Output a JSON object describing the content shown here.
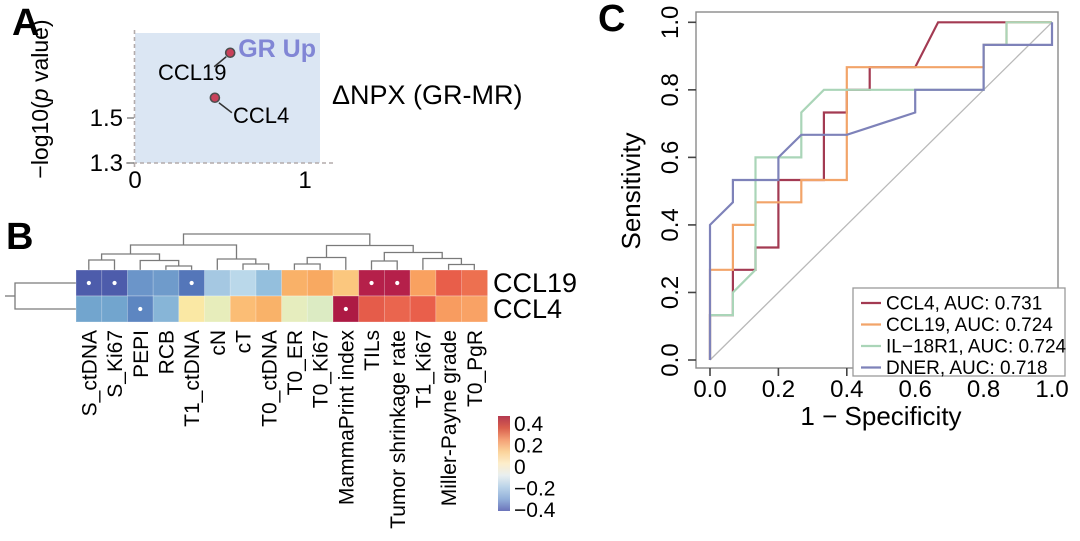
{
  "panel_a": {
    "label": "A",
    "ylabel_pre": "−log10(",
    "ylabel_italic": "p",
    "ylabel_post": " value)",
    "xlabel": "ΔNPX (GR-MR)",
    "region_label": "GR Up",
    "region_label_color": "#8186d5",
    "region_fill": "#dbe6f3",
    "dash_color": "#b3abab",
    "point_fill": "#c9415a",
    "point_stroke": "#4d4d4d",
    "yticks": [
      {
        "v": 1.5,
        "label": "1.5"
      },
      {
        "v": 1.3,
        "label": "1.3"
      }
    ],
    "xticks": [
      {
        "v": 0,
        "label": "0"
      },
      {
        "v": 1,
        "label": "1"
      }
    ]
  },
  "panel_b": {
    "label": "B",
    "dendrogram_color": "#7a7a7a",
    "colorbar": {
      "ticks": [
        "0.4",
        "0.2",
        "0",
        "−0.2",
        "−0.4"
      ],
      "stops": [
        "#b43a50",
        "#d95f4d",
        "#f4a076",
        "#fbd39b",
        "#fdeecb",
        "#e9eff0",
        "#bad3e9",
        "#93b0da",
        "#6b74ba"
      ]
    }
  },
  "panel_c": {
    "label": "C",
    "xlabel": "1 − Specificity",
    "ylabel": "Sensitivity",
    "xticks": [
      "0.0",
      "0.2",
      "0.4",
      "0.6",
      "0.8",
      "1.0"
    ],
    "yticks": [
      "0.0",
      "0.2",
      "0.4",
      "0.6",
      "0.8",
      "1.0"
    ],
    "box_color": "#8a8a8a",
    "diagonal_color": "#b9b9b9",
    "legend_border": "#9a9a9a"
  },
  "chart_data": [
    {
      "type": "scatter",
      "panel": "A",
      "xlabel": "ΔNPX (GR-MR)",
      "ylabel": "−log10(p value)",
      "xticks": [
        0,
        1
      ],
      "yticks": [
        1.5,
        1.3
      ],
      "shaded_region": "x > 0 and y > 1.3 (GR Up)",
      "annotations": [
        "GR Up"
      ],
      "points": [
        {
          "label": "CCL19",
          "x": 0.56,
          "y": 1.79
        },
        {
          "label": "CCL4",
          "x": 0.47,
          "y": 1.59
        }
      ]
    },
    {
      "type": "heatmap",
      "panel": "B",
      "rows": [
        "CCL19",
        "CCL4"
      ],
      "columns": [
        "S_ctDNA",
        "S_Ki67",
        "PEPI",
        "RCB",
        "T1_ctDNA",
        "cN",
        "cT",
        "T0_ctDNA",
        "T0_ER",
        "T0_Ki67",
        "MammaPrint index",
        "TILs",
        "Tumor shrinkage rate",
        "T1_Ki67",
        "Miller-Payne grade",
        "T0_PgR"
      ],
      "values": [
        [
          -0.42,
          -0.42,
          -0.27,
          -0.26,
          -0.37,
          -0.16,
          -0.12,
          -0.19,
          0.19,
          0.21,
          0.13,
          0.43,
          0.43,
          0.22,
          0.32,
          0.3
        ],
        [
          -0.22,
          -0.22,
          -0.35,
          -0.16,
          0.06,
          0.01,
          0.14,
          0.17,
          0.02,
          -0.02,
          0.44,
          0.32,
          0.29,
          0.3,
          0.22,
          0.21
        ]
      ],
      "cell_colors": [
        [
          "#4d5cab",
          "#4d5cab",
          "#6b95c9",
          "#6f9bcb",
          "#5476b9",
          "#a5c8e2",
          "#bad8ea",
          "#94bfdd",
          "#f9b168",
          "#f8a961",
          "#fbc77e",
          "#b5204a",
          "#b5204a",
          "#f9a160",
          "#e85e4a",
          "#ed7050"
        ],
        [
          "#72a5ce",
          "#72a5ce",
          "#5d86c1",
          "#87b5d7",
          "#fae8a4",
          "#e7edbb",
          "#fbbd75",
          "#f9b269",
          "#e6edbe",
          "#dcebc3",
          "#ad1a44",
          "#e55c4a",
          "#ea654e",
          "#e95f4b",
          "#f89c60",
          "#f9a265"
        ]
      ],
      "significance_dots": [
        [
          1,
          1,
          0,
          0,
          1,
          0,
          0,
          0,
          0,
          0,
          0,
          1,
          1,
          0,
          0,
          0
        ],
        [
          0,
          0,
          1,
          0,
          0,
          0,
          0,
          0,
          0,
          0,
          1,
          0,
          0,
          0,
          0,
          0
        ]
      ],
      "colorbar_range": [
        0.45,
        -0.45
      ],
      "colorbar_ticks": [
        0.4,
        0.2,
        0,
        -0.2,
        -0.4
      ]
    },
    {
      "type": "line",
      "panel": "C",
      "subtype": "ROC",
      "xlabel": "1 − Specificity",
      "ylabel": "Sensitivity",
      "xlim": [
        0,
        1
      ],
      "ylim": [
        0,
        1
      ],
      "legend_position": "bottom-right",
      "series": [
        {
          "name": "CCL4",
          "auc": 0.731,
          "legend": "CCL4, AUC: 0.731",
          "color": "#a33a52",
          "points": [
            [
              0,
              0
            ],
            [
              0,
              0.133
            ],
            [
              0.067,
              0.133
            ],
            [
              0.067,
              0.267
            ],
            [
              0.133,
              0.267
            ],
            [
              0.133,
              0.333
            ],
            [
              0.2,
              0.333
            ],
            [
              0.2,
              0.533
            ],
            [
              0.333,
              0.533
            ],
            [
              0.333,
              0.733
            ],
            [
              0.4,
              0.733
            ],
            [
              0.4,
              0.8
            ],
            [
              0.467,
              0.8
            ],
            [
              0.467,
              0.867
            ],
            [
              0.6,
              0.867
            ],
            [
              0.667,
              1
            ],
            [
              0.867,
              1
            ],
            [
              1,
              1
            ]
          ]
        },
        {
          "name": "CCL19",
          "auc": 0.724,
          "legend": "CCL19, AUC: 0.724",
          "color": "#f2a469",
          "points": [
            [
              0,
              0
            ],
            [
              0,
              0.267
            ],
            [
              0.067,
              0.267
            ],
            [
              0.067,
              0.4
            ],
            [
              0.133,
              0.4
            ],
            [
              0.133,
              0.467
            ],
            [
              0.267,
              0.467
            ],
            [
              0.267,
              0.533
            ],
            [
              0.4,
              0.533
            ],
            [
              0.4,
              0.867
            ],
            [
              0.8,
              0.867
            ],
            [
              0.8,
              0.933
            ],
            [
              0.867,
              0.933
            ],
            [
              0.867,
              1
            ],
            [
              1,
              1
            ]
          ]
        },
        {
          "name": "IL−18R1",
          "auc": 0.724,
          "legend": "IL−18R1, AUC: 0.724",
          "color": "#aad5b8",
          "points": [
            [
              0,
              0
            ],
            [
              0,
              0.133
            ],
            [
              0.067,
              0.133
            ],
            [
              0.067,
              0.2
            ],
            [
              0.133,
              0.267
            ],
            [
              0.133,
              0.6
            ],
            [
              0.267,
              0.6
            ],
            [
              0.267,
              0.733
            ],
            [
              0.333,
              0.8
            ],
            [
              0.8,
              0.8
            ],
            [
              0.8,
              0.933
            ],
            [
              0.867,
              0.933
            ],
            [
              0.867,
              1
            ],
            [
              1,
              1
            ]
          ]
        },
        {
          "name": "DNER",
          "auc": 0.718,
          "legend": "DNER, AUC: 0.718",
          "color": "#7e82b9",
          "points": [
            [
              0,
              0
            ],
            [
              0,
              0.4
            ],
            [
              0.067,
              0.467
            ],
            [
              0.067,
              0.533
            ],
            [
              0.2,
              0.533
            ],
            [
              0.2,
              0.6
            ],
            [
              0.267,
              0.667
            ],
            [
              0.4,
              0.667
            ],
            [
              0.6,
              0.733
            ],
            [
              0.6,
              0.8
            ],
            [
              0.8,
              0.8
            ],
            [
              0.8,
              0.933
            ],
            [
              1,
              0.933
            ],
            [
              1,
              1
            ]
          ]
        }
      ]
    }
  ]
}
